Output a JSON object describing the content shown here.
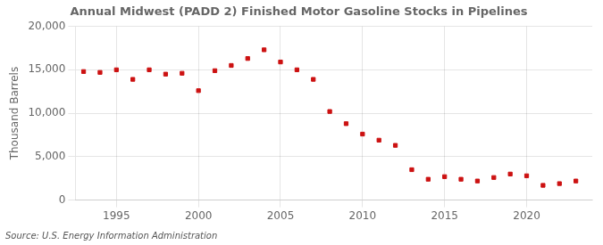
{
  "chart_data": {
    "type": "scatter",
    "title": "Annual Midwest (PADD 2) Finished Motor Gasoline Stocks in Pipelines",
    "ylabel": "Thousand Barrels",
    "source": "Source: U.S. Energy Information Administration",
    "x": [
      1993,
      1994,
      1995,
      1996,
      1997,
      1998,
      1999,
      2000,
      2001,
      2002,
      2003,
      2004,
      2005,
      2006,
      2007,
      2008,
      2009,
      2010,
      2011,
      2012,
      2013,
      2014,
      2015,
      2016,
      2017,
      2018,
      2019,
      2020,
      2021,
      2022,
      2023
    ],
    "values": [
      14800,
      14700,
      15000,
      13900,
      15000,
      14500,
      14600,
      12600,
      14900,
      15500,
      16300,
      17300,
      15900,
      15000,
      13900,
      10200,
      8800,
      7600,
      6900,
      6300,
      3500,
      2400,
      2700,
      2400,
      2200,
      2600,
      3000,
      2800,
      1700,
      1900,
      2200
    ],
    "color": "#cc1111",
    "marker": "square",
    "xlim": [
      1992.5,
      2024
    ],
    "xticks": [
      1995,
      2000,
      2005,
      2010,
      2015,
      2020
    ],
    "ylim": [
      0,
      20000
    ],
    "yticks": [
      0,
      {
        "value": 5000,
        "label": "5,000"
      },
      {
        "value": 10000,
        "label": "10,000"
      },
      {
        "value": 15000,
        "label": "15,000"
      },
      {
        "value": 20000,
        "label": "20,000"
      }
    ],
    "grid": true
  }
}
